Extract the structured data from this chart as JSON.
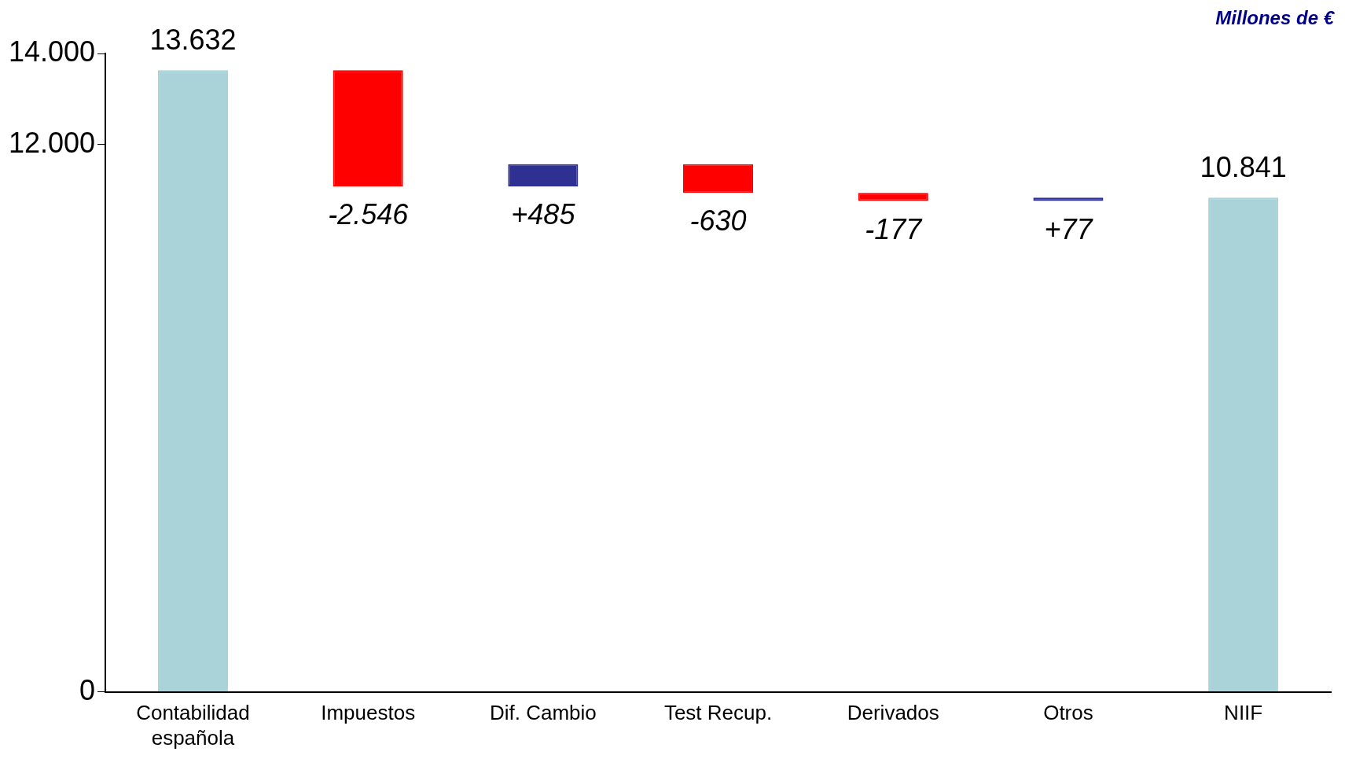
{
  "chart_data": {
    "type": "bar",
    "categories": [
      "Contabilidad española",
      "Impuestos",
      "Dif. Cambio",
      "Test Recup.",
      "Derivados",
      "Otros",
      "NIIF"
    ],
    "values": [
      13632,
      -2546,
      485,
      -630,
      -177,
      77,
      10841
    ],
    "base": [
      0,
      13632,
      11086,
      11571,
      10941,
      10764,
      0
    ],
    "colors": [
      "#a9d3d8",
      "#ff0000",
      "#2e3192",
      "#ff0000",
      "#ff0000",
      "#2e3192",
      "#a9d3d8"
    ],
    "value_labels": [
      "13.632",
      "-2.546",
      "+485",
      "-630",
      "-177",
      "+77",
      "10.841"
    ],
    "ylim": [
      0,
      14000
    ],
    "yticks": [
      0,
      {
        "value": 12000,
        "label": "12.000"
      },
      {
        "value": 14000,
        "label": "14.000"
      }
    ],
    "annotations": [
      "Millones de €"
    ],
    "grid": false,
    "legend": false
  }
}
